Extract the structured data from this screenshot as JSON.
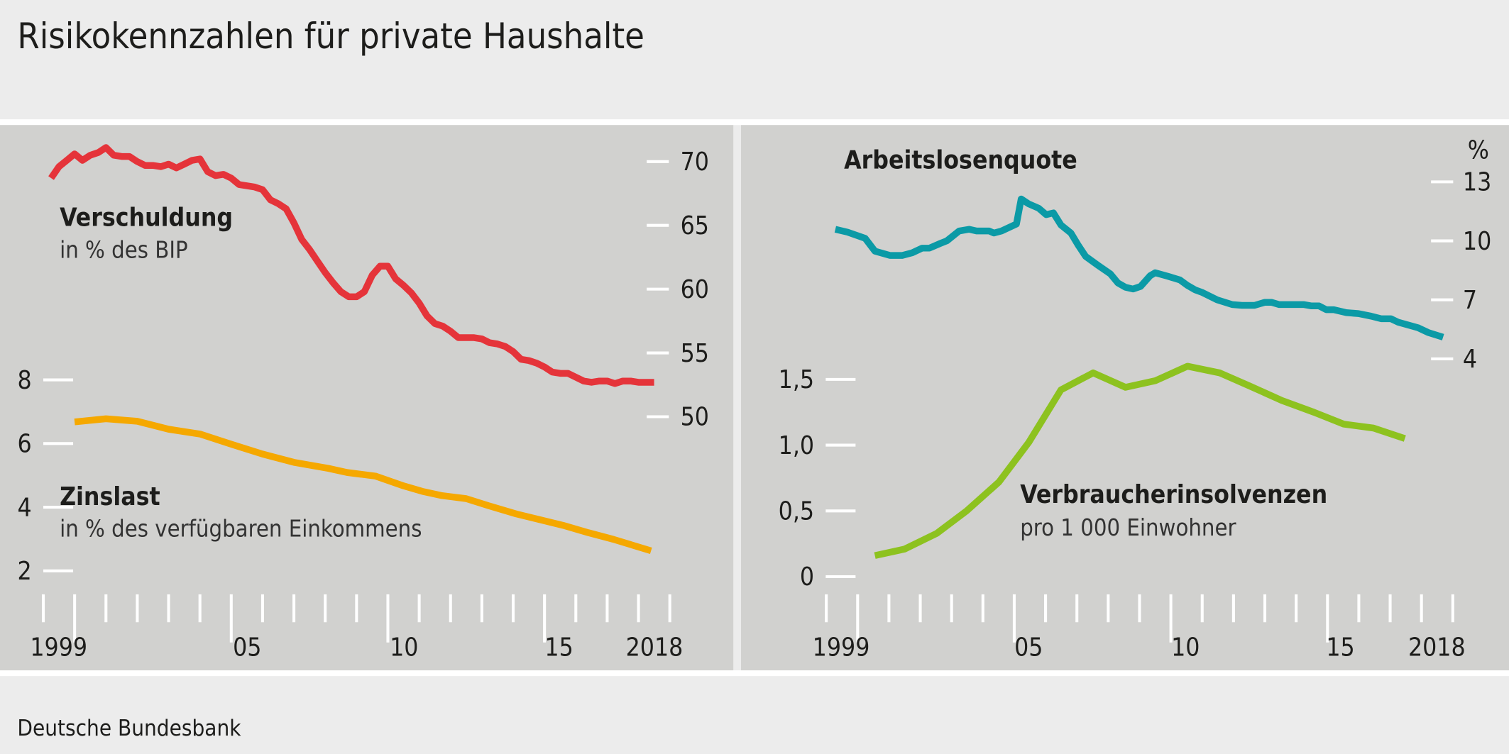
{
  "title": "Risikokennzahlen für private Haushalte",
  "footer": "Deutsche Bundesbank",
  "chart_data": [
    {
      "type": "line",
      "xlim": [
        1999,
        2019
      ],
      "x_tick_labels": [
        "1999",
        "05",
        "10",
        "15",
        "2018"
      ],
      "grid": false,
      "series": [
        {
          "name": "Verschuldung",
          "subtitle": "in % des BIP",
          "axis": "right",
          "ylim": [
            50,
            70
          ],
          "ticks": [
            70,
            65,
            60,
            55,
            50
          ],
          "tick_labels": [
            "70",
            "65",
            "60",
            "55",
            "50"
          ],
          "color": "#e5343a",
          "x_start": 1999.25,
          "x_step": 0.25,
          "values": [
            68.7,
            69.6,
            70.1,
            70.6,
            70.1,
            70.5,
            70.7,
            71.1,
            70.5,
            70.4,
            70.4,
            70.0,
            69.7,
            69.7,
            69.6,
            69.8,
            69.5,
            69.8,
            70.1,
            70.2,
            69.2,
            68.9,
            69.0,
            68.7,
            68.2,
            68.1,
            68.0,
            67.8,
            67.0,
            66.7,
            66.3,
            65.2,
            63.9,
            63.1,
            62.2,
            61.3,
            60.5,
            59.8,
            59.4,
            59.4,
            59.8,
            61.1,
            61.8,
            61.8,
            60.8,
            60.3,
            59.7,
            58.9,
            57.9,
            57.3,
            57.1,
            56.7,
            56.2,
            56.2,
            56.2,
            56.1,
            55.8,
            55.7,
            55.5,
            55.1,
            54.5,
            54.4,
            54.2,
            53.9,
            53.5,
            53.4,
            53.4,
            53.1,
            52.8,
            52.7,
            52.8,
            52.8,
            52.6,
            52.8,
            52.8,
            52.7,
            52.7,
            52.7
          ]
        },
        {
          "name": "Zinslast",
          "subtitle": "in % des verfügbaren Einkommens",
          "axis": "left",
          "ylim": [
            2,
            8
          ],
          "ticks": [
            8,
            6,
            4,
            2
          ],
          "tick_labels": [
            "8",
            "6",
            "4",
            "2"
          ],
          "color": "#f5a800",
          "x": [
            2000.0,
            2001.0,
            2002.0,
            2003.0,
            2004.0,
            2005.0,
            2006.0,
            2007.0,
            2008.1,
            2008.7,
            2009.6,
            2010.5,
            2011.1,
            2011.7,
            2012.5,
            2013.2,
            2014.1,
            2015.6,
            2016.4,
            2017.2,
            2018.4
          ],
          "values": [
            6.68,
            6.78,
            6.7,
            6.45,
            6.3,
            5.98,
            5.67,
            5.41,
            5.22,
            5.09,
            4.98,
            4.67,
            4.5,
            4.37,
            4.27,
            4.05,
            3.79,
            3.43,
            3.2,
            2.99,
            2.63
          ]
        }
      ]
    },
    {
      "type": "line",
      "xlim": [
        1999,
        2019
      ],
      "x_tick_labels": [
        "1999",
        "05",
        "10",
        "15",
        "2018"
      ],
      "grid": false,
      "unit": "%",
      "series": [
        {
          "name": "Arbeitslosenquote",
          "axis": "right",
          "ylim": [
            4,
            13
          ],
          "ticks": [
            13,
            10,
            7,
            4
          ],
          "tick_labels": [
            "13",
            "10",
            "7",
            "4"
          ],
          "color": "#0b9aa6",
          "x": [
            1999.29,
            1999.68,
            2000.24,
            2000.55,
            2001.03,
            2001.42,
            2001.74,
            2002.06,
            2002.29,
            2002.61,
            2002.85,
            2003.24,
            2003.56,
            2003.8,
            2004.2,
            2004.35,
            2004.59,
            2005.07,
            2005.22,
            2005.46,
            2005.78,
            2006.02,
            2006.25,
            2006.49,
            2006.81,
            2007.05,
            2007.28,
            2007.68,
            2008.07,
            2008.31,
            2008.55,
            2008.79,
            2009.03,
            2009.34,
            2009.5,
            2009.9,
            2010.29,
            2010.53,
            2010.77,
            2011.01,
            2011.48,
            2011.96,
            2012.27,
            2012.67,
            2012.99,
            2013.22,
            2013.46,
            2013.86,
            2014.25,
            2014.49,
            2014.73,
            2014.96,
            2015.2,
            2015.6,
            2015.99,
            2016.39,
            2016.71,
            2017.02,
            2017.26,
            2017.89,
            2018.21,
            2018.69
          ],
          "values": [
            10.59,
            10.44,
            10.13,
            9.48,
            9.26,
            9.26,
            9.39,
            9.63,
            9.63,
            9.85,
            10.0,
            10.5,
            10.59,
            10.5,
            10.5,
            10.4,
            10.5,
            10.86,
            12.13,
            11.88,
            11.66,
            11.33,
            11.42,
            10.81,
            10.4,
            9.76,
            9.21,
            8.75,
            8.32,
            7.86,
            7.64,
            7.55,
            7.68,
            8.23,
            8.38,
            8.2,
            8.01,
            7.73,
            7.51,
            7.37,
            7.0,
            6.76,
            6.72,
            6.72,
            6.87,
            6.87,
            6.76,
            6.76,
            6.76,
            6.69,
            6.69,
            6.5,
            6.5,
            6.35,
            6.3,
            6.17,
            6.04,
            6.04,
            5.86,
            5.58,
            5.34,
            5.1
          ]
        },
        {
          "name": "Verbraucherinsolvenzen",
          "subtitle": "pro 1 000 Einwohner",
          "axis": "left",
          "ylim": [
            0,
            1.5
          ],
          "ticks": [
            1.5,
            1.0,
            0.5,
            0
          ],
          "tick_labels": [
            "1,5",
            "1,0",
            "0,5",
            "0"
          ],
          "color": "#8dc21f",
          "x": [
            2000.55,
            2001.5,
            2002.53,
            2003.48,
            2004.51,
            2005.46,
            2006.49,
            2007.52,
            2008.55,
            2009.5,
            2010.53,
            2011.56,
            2012.51,
            2013.54,
            2014.57,
            2015.52,
            2016.47,
            2017.47
          ],
          "values": [
            0.16,
            0.21,
            0.33,
            0.5,
            0.72,
            1.02,
            1.42,
            1.55,
            1.44,
            1.49,
            1.6,
            1.55,
            1.45,
            1.34,
            1.25,
            1.16,
            1.13,
            1.05
          ]
        }
      ]
    }
  ]
}
